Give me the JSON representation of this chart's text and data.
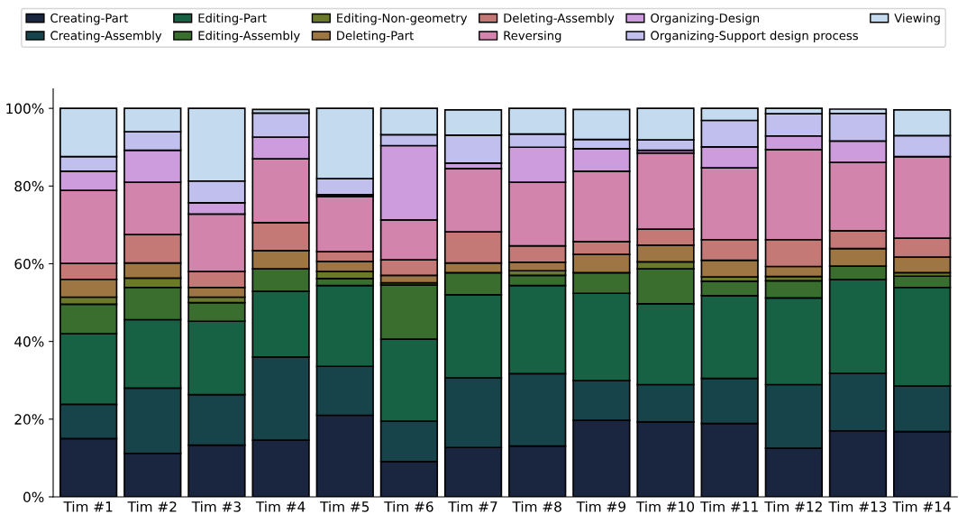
{
  "chart_data": {
    "type": "bar",
    "stacked": true,
    "legend": "top",
    "grid": false,
    "categories": [
      "Tim #1",
      "Tim #2",
      "Tim #3",
      "Tim #4",
      "Tim #5",
      "Tim #6",
      "Tim #7",
      "Tim #8",
      "Tim #9",
      "Tim #10",
      "Tim #11",
      "Tim #12",
      "Tim #13",
      "Tim #14"
    ],
    "ylim": [
      0,
      105
    ],
    "yticks": [
      {
        "value": 0,
        "label": "0%"
      },
      {
        "value": 20,
        "label": "20%"
      },
      {
        "value": 40,
        "label": "40%"
      },
      {
        "value": 60,
        "label": "60%"
      },
      {
        "value": 80,
        "label": "80%"
      },
      {
        "value": 100,
        "label": "100%"
      }
    ],
    "series": [
      {
        "name": "Creating-Part",
        "color": "#1a2540",
        "values": [
          15.0,
          11.2,
          13.3,
          14.6,
          21.0,
          9.1,
          12.7,
          13.1,
          19.7,
          19.3,
          18.9,
          12.5,
          17.0,
          16.8
        ]
      },
      {
        "name": "Creating-Assembly",
        "color": "#16444a",
        "values": [
          8.8,
          16.8,
          13.0,
          21.4,
          12.6,
          10.4,
          17.9,
          18.6,
          10.2,
          9.6,
          11.6,
          16.4,
          14.8,
          11.7
        ]
      },
      {
        "name": "Editing-Part",
        "color": "#176245",
        "values": [
          18.2,
          17.6,
          18.9,
          16.9,
          20.8,
          21.1,
          21.4,
          22.7,
          22.5,
          20.8,
          21.3,
          22.3,
          24.1,
          25.4
        ]
      },
      {
        "name": "Editing-Assembly",
        "color": "#3a6e2e",
        "values": [
          7.6,
          8.3,
          4.8,
          5.8,
          1.8,
          13.9,
          5.7,
          2.6,
          5.3,
          9.0,
          3.7,
          4.4,
          3.5,
          2.9
        ]
      },
      {
        "name": "Editing-Non-geometry",
        "color": "#6a7a2a",
        "values": [
          1.8,
          2.4,
          1.4,
          null,
          1.8,
          0.6,
          null,
          1.2,
          null,
          1.8,
          1.1,
          1.1,
          null,
          0.9
        ]
      },
      {
        "name": "Deleting-Part",
        "color": "#9e7644",
        "values": [
          4.6,
          3.9,
          2.5,
          4.7,
          2.6,
          1.9,
          2.5,
          2.2,
          4.7,
          4.3,
          4.3,
          2.6,
          4.5,
          4.0
        ]
      },
      {
        "name": "Deleting-Assembly",
        "color": "#c47977",
        "values": [
          4.1,
          7.3,
          4.1,
          7.2,
          2.5,
          4.0,
          8.0,
          4.2,
          3.3,
          4.1,
          5.3,
          6.9,
          4.6,
          4.9
        ]
      },
      {
        "name": "Reversing",
        "color": "#d384ad",
        "values": [
          18.8,
          13.5,
          14.8,
          16.4,
          14.2,
          10.3,
          16.3,
          16.4,
          18.1,
          19.6,
          18.5,
          23.2,
          17.6,
          21.0
        ]
      },
      {
        "name": "Organizing-Design",
        "color": "#cc9cdd",
        "values": [
          4.9,
          8.2,
          2.9,
          5.6,
          0.5,
          19.1,
          1.4,
          9.0,
          5.8,
          0.7,
          5.4,
          3.5,
          5.5,
          null
        ]
      },
      {
        "name": "Organizing-Support design process",
        "color": "#c0bfee",
        "values": [
          3.8,
          4.8,
          5.6,
          6.2,
          4.1,
          2.8,
          7.2,
          3.4,
          2.4,
          2.7,
          6.8,
          5.7,
          7.1,
          5.4
        ]
      },
      {
        "name": "Viewing",
        "color": "#c3daef",
        "values": [
          12.4,
          6.0,
          18.7,
          0.9,
          18.1,
          6.8,
          6.5,
          6.6,
          7.7,
          8.1,
          3.1,
          1.4,
          1.1,
          6.6
        ]
      }
    ]
  }
}
